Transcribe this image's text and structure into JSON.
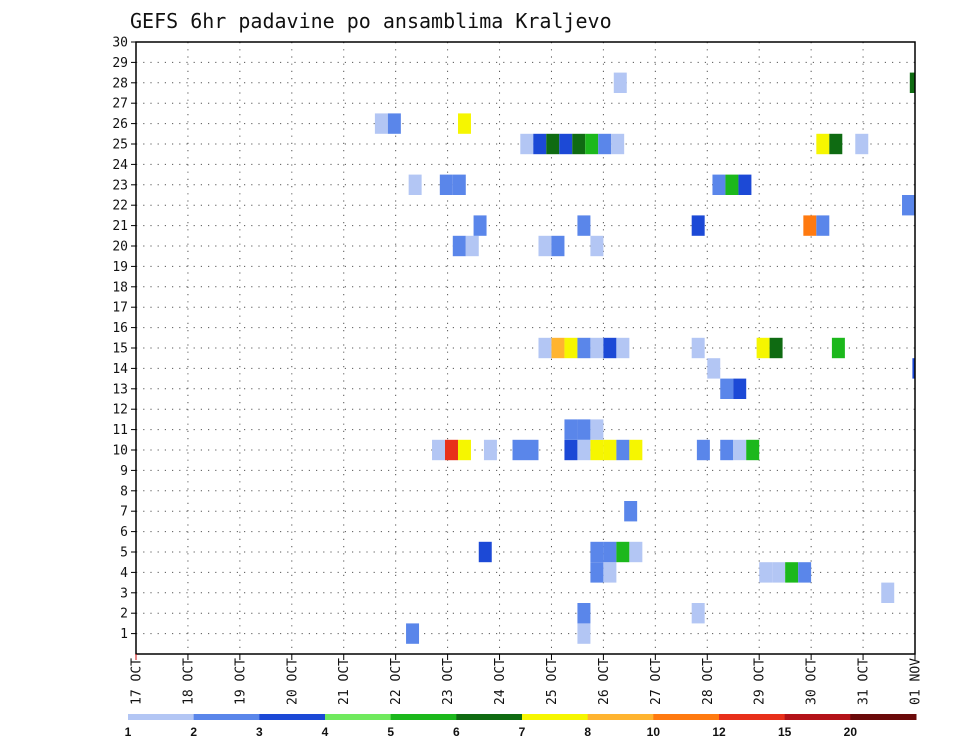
{
  "chart_data": {
    "type": "heatmap",
    "title": "GEFS 6hr padavine po ansamblima Kraljevo",
    "xlabel": "",
    "ylabel": "",
    "x_ticks": [
      "17 OCT",
      "18 OCT",
      "19 OCT",
      "20 OCT",
      "21 OCT",
      "22 OCT",
      "23 OCT",
      "24 OCT",
      "25 OCT",
      "26 OCT",
      "27 OCT",
      "28 OCT",
      "29 OCT",
      "30 OCT",
      "31 OCT",
      "01 NOV"
    ],
    "xlim_days": [
      0,
      15
    ],
    "y_ticks": [
      "1",
      "2",
      "3",
      "4",
      "5",
      "6",
      "7",
      "8",
      "9",
      "10",
      "11",
      "12",
      "13",
      "14",
      "15",
      "16",
      "17",
      "18",
      "19",
      "20",
      "21",
      "22",
      "23",
      "24",
      "25",
      "26",
      "27",
      "28",
      "29",
      "30"
    ],
    "ylim": [
      0,
      30
    ],
    "grid": true,
    "legend": "colorbar-bottom",
    "colorbar": {
      "labels": [
        "1",
        "2",
        "3",
        "4",
        "5",
        "6",
        "7",
        "8",
        "10",
        "12",
        "15",
        "20"
      ],
      "colors": [
        "#b3c6f4",
        "#5a86ea",
        "#1c49d6",
        "#70ea5e",
        "#1cb81c",
        "#0f6b12",
        "#f6f600",
        "#ffb430",
        "#ff7a10",
        "#e8301a",
        "#b31218",
        "#6b0a0a"
      ]
    },
    "cell_width_days": 0.25,
    "cells": [
      {
        "x": 5.2,
        "y": 1,
        "v": 2
      },
      {
        "x": 8.5,
        "y": 1,
        "v": 1.5
      },
      {
        "x": 8.5,
        "y": 2,
        "v": 2.5
      },
      {
        "x": 10.7,
        "y": 2,
        "v": 1.5
      },
      {
        "x": 14.35,
        "y": 3,
        "v": 1.5
      },
      {
        "x": 12.0,
        "y": 4,
        "v": 1.5
      },
      {
        "x": 12.25,
        "y": 4,
        "v": 1.5
      },
      {
        "x": 12.5,
        "y": 4,
        "v": 5.5
      },
      {
        "x": 12.75,
        "y": 4,
        "v": 2.5
      },
      {
        "x": 8.75,
        "y": 4,
        "v": 2.5
      },
      {
        "x": 9.0,
        "y": 4,
        "v": 1.5
      },
      {
        "x": 6.6,
        "y": 5,
        "v": 3.5
      },
      {
        "x": 8.75,
        "y": 5,
        "v": 2.5
      },
      {
        "x": 9.0,
        "y": 5,
        "v": 2.5
      },
      {
        "x": 9.25,
        "y": 5,
        "v": 5.5
      },
      {
        "x": 9.5,
        "y": 5,
        "v": 1.5
      },
      {
        "x": 9.4,
        "y": 7,
        "v": 2.5
      },
      {
        "x": 5.7,
        "y": 10,
        "v": 1.5
      },
      {
        "x": 5.95,
        "y": 10,
        "v": 13
      },
      {
        "x": 6.2,
        "y": 10,
        "v": 7.5
      },
      {
        "x": 6.7,
        "y": 10,
        "v": 1.5
      },
      {
        "x": 7.25,
        "y": 10,
        "v": 2.5
      },
      {
        "x": 7.5,
        "y": 10,
        "v": 2.5
      },
      {
        "x": 8.25,
        "y": 10,
        "v": 3.5
      },
      {
        "x": 8.5,
        "y": 10,
        "v": 1.5
      },
      {
        "x": 8.75,
        "y": 10,
        "v": 7.5
      },
      {
        "x": 9.0,
        "y": 10,
        "v": 7.5
      },
      {
        "x": 9.25,
        "y": 10,
        "v": 2.5
      },
      {
        "x": 9.5,
        "y": 10,
        "v": 7.5
      },
      {
        "x": 10.8,
        "y": 10,
        "v": 2.5
      },
      {
        "x": 11.25,
        "y": 10,
        "v": 2.5
      },
      {
        "x": 11.5,
        "y": 10,
        "v": 1.5
      },
      {
        "x": 11.75,
        "y": 10,
        "v": 5.5
      },
      {
        "x": 8.25,
        "y": 11,
        "v": 2.5
      },
      {
        "x": 8.5,
        "y": 11,
        "v": 2.5
      },
      {
        "x": 8.75,
        "y": 11,
        "v": 1.5
      },
      {
        "x": 11.25,
        "y": 13,
        "v": 2.5
      },
      {
        "x": 11.5,
        "y": 13,
        "v": 3.5
      },
      {
        "x": 11.0,
        "y": 14,
        "v": 1.5
      },
      {
        "x": 14.95,
        "y": 14,
        "v": 3.5
      },
      {
        "x": 7.75,
        "y": 15,
        "v": 1.5
      },
      {
        "x": 8.0,
        "y": 15,
        "v": 9
      },
      {
        "x": 8.25,
        "y": 15,
        "v": 7.5
      },
      {
        "x": 8.5,
        "y": 15,
        "v": 2.5
      },
      {
        "x": 8.75,
        "y": 15,
        "v": 1.5
      },
      {
        "x": 9.0,
        "y": 15,
        "v": 3.5
      },
      {
        "x": 9.25,
        "y": 15,
        "v": 1.5
      },
      {
        "x": 10.7,
        "y": 15,
        "v": 1.5
      },
      {
        "x": 11.95,
        "y": 15,
        "v": 7.5
      },
      {
        "x": 12.2,
        "y": 15,
        "v": 6
      },
      {
        "x": 13.4,
        "y": 15,
        "v": 5
      },
      {
        "x": 6.1,
        "y": 20,
        "v": 2.5
      },
      {
        "x": 6.35,
        "y": 20,
        "v": 1.5
      },
      {
        "x": 7.75,
        "y": 20,
        "v": 1.5
      },
      {
        "x": 8.0,
        "y": 20,
        "v": 2.5
      },
      {
        "x": 8.75,
        "y": 20,
        "v": 1.5
      },
      {
        "x": 6.5,
        "y": 21,
        "v": 2.5
      },
      {
        "x": 8.5,
        "y": 21,
        "v": 2.5
      },
      {
        "x": 10.7,
        "y": 21,
        "v": 3.5
      },
      {
        "x": 12.85,
        "y": 21,
        "v": 11
      },
      {
        "x": 13.1,
        "y": 21,
        "v": 2.5
      },
      {
        "x": 14.75,
        "y": 22,
        "v": 2.5
      },
      {
        "x": 5.25,
        "y": 23,
        "v": 1.5
      },
      {
        "x": 5.85,
        "y": 23,
        "v": 2.5
      },
      {
        "x": 6.1,
        "y": 23,
        "v": 2.5
      },
      {
        "x": 11.1,
        "y": 23,
        "v": 2.5
      },
      {
        "x": 11.35,
        "y": 23,
        "v": 5
      },
      {
        "x": 11.6,
        "y": 23,
        "v": 3.5
      },
      {
        "x": 7.4,
        "y": 25,
        "v": 1.5
      },
      {
        "x": 7.65,
        "y": 25,
        "v": 3.5
      },
      {
        "x": 7.9,
        "y": 25,
        "v": 6.5
      },
      {
        "x": 8.15,
        "y": 25,
        "v": 3.5
      },
      {
        "x": 8.4,
        "y": 25,
        "v": 6
      },
      {
        "x": 8.65,
        "y": 25,
        "v": 5
      },
      {
        "x": 8.9,
        "y": 25,
        "v": 2.5
      },
      {
        "x": 9.15,
        "y": 25,
        "v": 1.5
      },
      {
        "x": 13.1,
        "y": 25,
        "v": 7.5
      },
      {
        "x": 13.35,
        "y": 25,
        "v": 6
      },
      {
        "x": 13.85,
        "y": 25,
        "v": 1.5
      },
      {
        "x": 4.6,
        "y": 26,
        "v": 1.5
      },
      {
        "x": 4.85,
        "y": 26,
        "v": 2.5
      },
      {
        "x": 6.2,
        "y": 26,
        "v": 7.5
      },
      {
        "x": 9.2,
        "y": 28,
        "v": 1.5
      },
      {
        "x": 14.9,
        "y": 28,
        "v": 6.5
      }
    ]
  }
}
